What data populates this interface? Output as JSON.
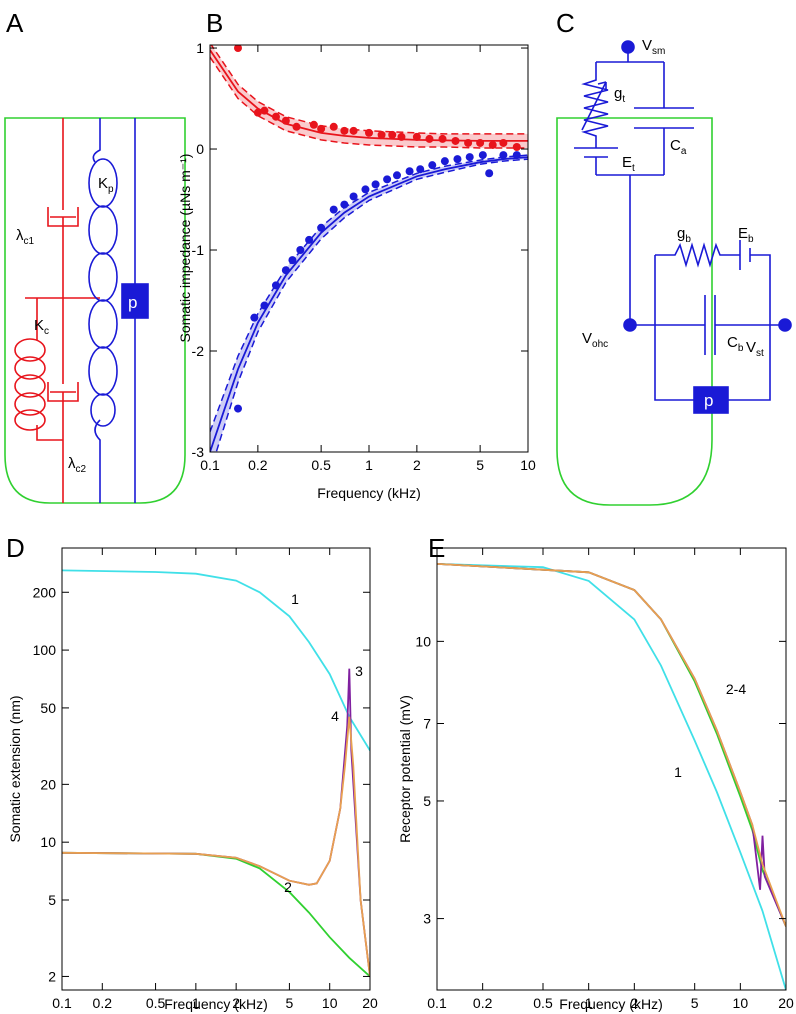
{
  "diagram_a": {
    "panel": "A",
    "labels": [
      {
        "main": "λ",
        "sub": "c1"
      },
      {
        "main": "K",
        "sub": "c"
      },
      {
        "main": "K",
        "sub": "p"
      },
      {
        "main": "p"
      },
      {
        "main": "λ",
        "sub": "c2"
      }
    ]
  },
  "diagram_c": {
    "panel": "C",
    "labels": [
      {
        "main": "V",
        "sub": "sm"
      },
      {
        "main": "g",
        "sub": "t"
      },
      {
        "main": "C",
        "sub": "a"
      },
      {
        "main": "E",
        "sub": "t"
      },
      {
        "main": "g",
        "sub": "b"
      },
      {
        "main": "E",
        "sub": "b"
      },
      {
        "main": "V",
        "sub": "ohc"
      },
      {
        "main": "C",
        "sub": "b"
      },
      {
        "main": "V",
        "sub": "st"
      },
      {
        "main": "p"
      }
    ]
  },
  "chart_data": [
    {
      "panel": "B",
      "type": "line",
      "xlog": true,
      "xlabel": "Frequency (kHz)",
      "ylabel": "Somatic impedance (µNs m⁻¹)",
      "xlim": [
        0.1,
        10
      ],
      "ylim": [
        -3,
        1.03
      ],
      "xticks": [
        0.1,
        0.2,
        0.5,
        1,
        2,
        5,
        10
      ],
      "yticks": [
        -3,
        -2,
        -1,
        0,
        1
      ],
      "bands": [
        {
          "color": "#e8141c",
          "x": [
            0.1,
            0.15,
            0.2,
            0.3,
            0.5,
            0.7,
            1,
            2,
            3,
            5,
            7,
            10
          ],
          "upper": [
            1.05,
            0.64,
            0.47,
            0.32,
            0.23,
            0.2,
            0.18,
            0.16,
            0.15,
            0.15,
            0.15,
            0.15
          ],
          "lower": [
            0.91,
            0.5,
            0.33,
            0.18,
            0.09,
            0.06,
            0.04,
            0.02,
            0.02,
            0.01,
            0.01,
            0.01
          ]
        },
        {
          "color": "#1a1ad6",
          "x": [
            0.1,
            0.15,
            0.2,
            0.3,
            0.5,
            0.7,
            1,
            2,
            3,
            5,
            7,
            10
          ],
          "upper": [
            -2.8,
            -2.05,
            -1.63,
            -1.18,
            -0.77,
            -0.58,
            -0.43,
            -0.24,
            -0.17,
            -0.11,
            -0.08,
            -0.06
          ],
          "lower": [
            -3.2,
            -2.31,
            -1.81,
            -1.32,
            -0.89,
            -0.68,
            -0.51,
            -0.3,
            -0.23,
            -0.15,
            -0.12,
            -0.1
          ]
        }
      ],
      "series": [
        {
          "color": "#e8141c",
          "mode": "line",
          "x": [
            0.1,
            0.15,
            0.2,
            0.3,
            0.5,
            0.7,
            1,
            2,
            3,
            5,
            7,
            10
          ],
          "values": [
            0.98,
            0.57,
            0.4,
            0.25,
            0.16,
            0.13,
            0.11,
            0.09,
            0.085,
            0.08,
            0.08,
            0.08
          ]
        },
        {
          "color": "#1a1ad6",
          "mode": "line",
          "x": [
            0.1,
            0.15,
            0.2,
            0.3,
            0.5,
            0.7,
            1,
            2,
            3,
            5,
            7,
            10
          ],
          "values": [
            -3,
            -2.18,
            -1.72,
            -1.25,
            -0.83,
            -0.63,
            -0.47,
            -0.27,
            -0.2,
            -0.13,
            -0.1,
            -0.08
          ]
        },
        {
          "color": "#e8141c",
          "mode": "markers",
          "x": [
            0.15,
            0.2,
            0.22,
            0.26,
            0.3,
            0.35,
            0.45,
            0.5,
            0.6,
            0.7,
            0.8,
            1,
            1.2,
            1.4,
            1.6,
            2,
            2.4,
            2.9,
            3.5,
            4.2,
            5,
            6,
            7,
            8.5
          ],
          "values": [
            1.0,
            0.36,
            0.38,
            0.32,
            0.28,
            0.22,
            0.24,
            0.2,
            0.22,
            0.18,
            0.18,
            0.16,
            0.14,
            0.14,
            0.12,
            0.12,
            0.1,
            0.1,
            0.08,
            0.06,
            0.06,
            0.04,
            0.06,
            0.02
          ]
        },
        {
          "color": "#1a1ad6",
          "mode": "markers",
          "x": [
            0.15,
            0.19,
            0.22,
            0.26,
            0.3,
            0.33,
            0.37,
            0.42,
            0.5,
            0.6,
            0.7,
            0.8,
            0.95,
            1.1,
            1.3,
            1.5,
            1.8,
            2.1,
            2.5,
            3,
            3.6,
            4.3,
            5.2,
            5.7,
            7,
            8.5
          ],
          "values": [
            -2.57,
            -1.67,
            -1.55,
            -1.35,
            -1.2,
            -1.1,
            -1.0,
            -0.9,
            -0.78,
            -0.6,
            -0.55,
            -0.47,
            -0.4,
            -0.35,
            -0.3,
            -0.26,
            -0.22,
            -0.2,
            -0.16,
            -0.12,
            -0.1,
            -0.08,
            -0.06,
            -0.24,
            -0.06,
            -0.06
          ]
        }
      ]
    },
    {
      "panel": "D",
      "type": "line",
      "xlog": true,
      "ylog": true,
      "xlabel": "Frequency (kHz)",
      "ylabel": "Somatic extension (nm)",
      "xlim": [
        0.1,
        20
      ],
      "ylim": [
        1.7,
        340
      ],
      "xticks": [
        0.1,
        0.2,
        0.5,
        1,
        2,
        5,
        10,
        20
      ],
      "yticks": [
        2,
        5,
        10,
        20,
        50,
        100,
        200
      ],
      "annotations": [
        "1",
        "2",
        "3",
        "4"
      ],
      "series": [
        {
          "color": "#40e0e8",
          "mode": "line",
          "x": [
            0.1,
            0.5,
            1,
            2,
            3,
            5,
            7,
            10,
            14,
            20
          ],
          "values": [
            260,
            255,
            250,
            230,
            200,
            150,
            110,
            75,
            45,
            30
          ]
        },
        {
          "color": "#30d030",
          "mode": "line",
          "x": [
            0.1,
            1,
            2,
            3,
            5,
            7,
            10,
            14,
            20
          ],
          "values": [
            8.8,
            8.7,
            8.2,
            7.3,
            5.5,
            4.3,
            3.2,
            2.5,
            2
          ]
        },
        {
          "color": "#8020a0",
          "mode": "line",
          "x": [
            0.1,
            1,
            2,
            3,
            5,
            7,
            8,
            10,
            12,
            13.5,
            14,
            14.5,
            17,
            20
          ],
          "values": [
            8.8,
            8.7,
            8.3,
            7.5,
            6.3,
            6.0,
            6.1,
            8,
            15,
            40,
            80,
            30,
            5,
            2
          ]
        },
        {
          "color": "#e8a050",
          "mode": "line",
          "x": [
            0.1,
            1,
            2,
            3,
            5,
            7,
            8,
            10,
            12,
            13,
            14,
            15,
            17,
            20
          ],
          "values": [
            8.8,
            8.7,
            8.3,
            7.5,
            6.3,
            6.0,
            6.1,
            8,
            15,
            25,
            45,
            25,
            5,
            2
          ]
        }
      ]
    },
    {
      "panel": "E",
      "type": "line",
      "xlog": true,
      "ylog": true,
      "xlabel": "Frequency (kHz)",
      "ylabel": "Receptor potential (mV)",
      "xlim": [
        0.1,
        20
      ],
      "ylim": [
        2.2,
        15
      ],
      "xticks": [
        0.1,
        0.2,
        0.5,
        1,
        2,
        5,
        10,
        20
      ],
      "yticks": [
        3,
        5,
        7,
        10
      ],
      "annotations": [
        "1",
        "2-4"
      ],
      "series": [
        {
          "color": "#40e0e8",
          "mode": "line",
          "x": [
            0.1,
            0.5,
            1,
            2,
            3,
            5,
            7,
            10,
            14,
            20
          ],
          "values": [
            14,
            13.8,
            13,
            11,
            9,
            6.5,
            5.2,
            4,
            3.1,
            2.2
          ]
        },
        {
          "color": "#30d030",
          "mode": "line",
          "x": [
            0.1,
            1,
            2,
            3,
            5,
            7,
            10,
            12,
            14,
            20
          ],
          "values": [
            14,
            13.5,
            12.5,
            11,
            8.4,
            6.7,
            5.1,
            4.4,
            3.7,
            2.9
          ]
        },
        {
          "color": "#8020a0",
          "mode": "line",
          "x": [
            0.1,
            1,
            2,
            3,
            5,
            7,
            10,
            12,
            13.5,
            14,
            14.5,
            20
          ],
          "values": [
            14,
            13.5,
            12.5,
            11,
            8.5,
            6.8,
            5.2,
            4.5,
            3.4,
            4.3,
            3.6,
            2.9
          ]
        },
        {
          "color": "#e8a050",
          "mode": "line",
          "x": [
            0.1,
            1,
            2,
            3,
            5,
            7,
            10,
            12,
            14,
            20
          ],
          "values": [
            14,
            13.5,
            12.5,
            11,
            8.5,
            6.8,
            5.2,
            4.5,
            3.8,
            2.9
          ]
        }
      ]
    }
  ]
}
